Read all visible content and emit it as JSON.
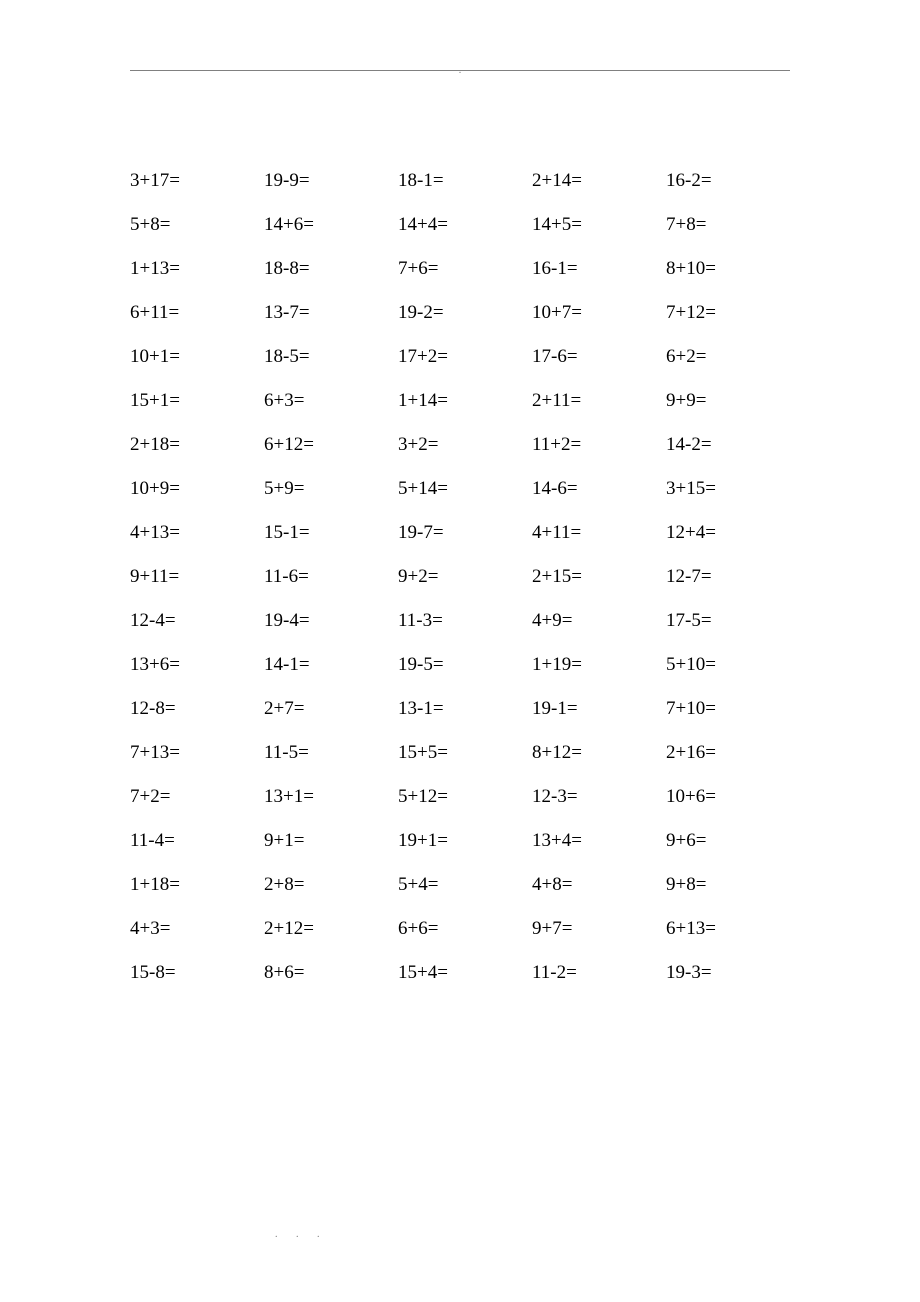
{
  "worksheet": {
    "type": "table",
    "columns": 5,
    "text_color": "#000000",
    "background_color": "#ffffff",
    "line_color": "#808080",
    "font_size_pt": 14,
    "rows": [
      [
        "3+17=",
        "19-9=",
        "18-1=",
        "2+14=",
        "16-2="
      ],
      [
        "5+8=",
        "14+6=",
        "14+4=",
        "14+5=",
        "7+8="
      ],
      [
        "1+13=",
        "18-8=",
        "7+6=",
        "16-1=",
        "8+10="
      ],
      [
        "6+11=",
        "13-7=",
        "19-2=",
        "10+7=",
        "7+12="
      ],
      [
        "10+1=",
        "18-5=",
        "17+2=",
        "17-6=",
        "6+2="
      ],
      [
        "15+1=",
        "6+3=",
        "1+14=",
        "2+11=",
        "9+9="
      ],
      [
        "2+18=",
        "6+12=",
        "3+2=",
        "11+2=",
        "14-2="
      ],
      [
        "10+9=",
        "5+9=",
        "5+14=",
        "14-6=",
        "3+15="
      ],
      [
        "4+13=",
        "15-1=",
        "19-7=",
        "4+11=",
        "12+4="
      ],
      [
        "9+11=",
        "11-6=",
        "9+2=",
        "2+15=",
        "12-7="
      ],
      [
        "12-4=",
        "19-4=",
        "11-3=",
        "4+9=",
        "17-5="
      ],
      [
        "13+6=",
        "14-1=",
        "19-5=",
        "1+19=",
        "5+10="
      ],
      [
        "12-8=",
        "2+7=",
        "13-1=",
        "19-1=",
        "7+10="
      ],
      [
        "7+13=",
        "11-5=",
        "15+5=",
        "8+12=",
        "2+16="
      ],
      [
        "7+2=",
        "13+1=",
        "5+12=",
        "12-3=",
        "10+6="
      ],
      [
        "11-4=",
        "9+1=",
        "19+1=",
        "13+4=",
        "9+6="
      ],
      [
        "1+18=",
        "2+8=",
        "5+4=",
        "4+8=",
        "9+8="
      ],
      [
        "4+3=",
        "2+12=",
        "6+6=",
        "9+7=",
        "6+13="
      ],
      [
        "15-8=",
        "8+6=",
        "15+4=",
        "11-2=",
        "19-3="
      ]
    ]
  },
  "header": {
    "dot": "."
  },
  "footer": {
    "dots": ". . ."
  }
}
